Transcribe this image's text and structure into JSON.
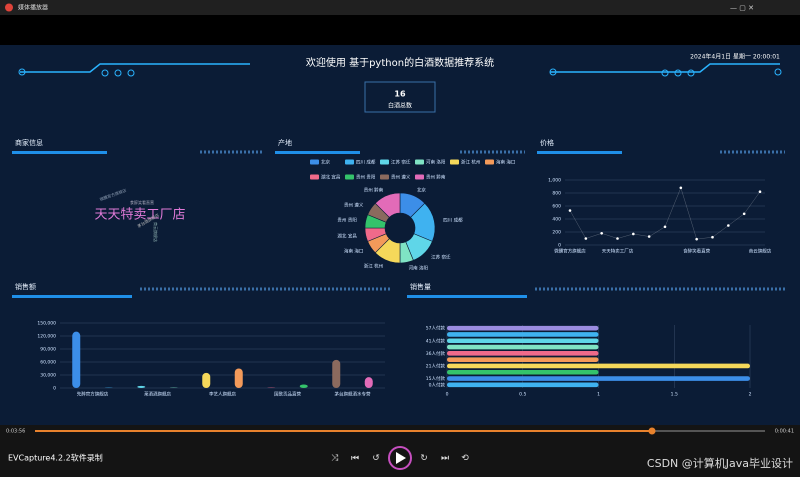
{
  "window": {
    "title": "媒体播放器"
  },
  "dashboard": {
    "title": "欢迎使用 基于python的白酒数据推荐系统",
    "datetime": "2024年4月1日 星期一 20:00:01",
    "total": "16",
    "total_label": "白酒总数",
    "panels": [
      "商家信息",
      "产地",
      "价格",
      "销售额",
      "销售量"
    ],
    "wordcloud": [
      {
        "text": "天天特卖工厂店"
      },
      {
        "text": "微醺官方旗舰店"
      },
      {
        "text": "食醉笑看直营"
      },
      {
        "text": "商云旗舰店"
      },
      {
        "text": "茅台酒旗舰店"
      }
    ]
  },
  "chart_data": [
    {
      "type": "pie",
      "categories": [
        "北京",
        "四川 成都",
        "江苏 宿迁",
        "河南 洛阳",
        "浙江 杭州",
        "海南 海口",
        "湖北 宜昌",
        "贵州 贵阳",
        "贵州 遵义",
        "贵州 黔南"
      ],
      "values": [
        2,
        3,
        2,
        1,
        2,
        1,
        1,
        1,
        1,
        2
      ],
      "colors": [
        "#3c8ee8",
        "#3fb2f0",
        "#5fd6e8",
        "#7fe3c4",
        "#f5d85a",
        "#f39a5a",
        "#f06a8a",
        "#34c36b",
        "#8b6a5e",
        "#e26bb8"
      ]
    },
    {
      "type": "line",
      "categories": [
        "微醺官方旗舰店",
        null,
        null,
        "天天特卖工厂店",
        null,
        null,
        null,
        null,
        "食醉笑看直营",
        null,
        null,
        null,
        "商云旗舰店"
      ],
      "values": [
        530,
        100,
        180,
        100,
        170,
        130,
        280,
        880,
        90,
        120,
        300,
        480,
        820
      ],
      "color": "#ffffff",
      "ylim": [
        0,
        1000
      ],
      "yticks": [
        0,
        200,
        400,
        600,
        800,
        {
          "value": 1000,
          "label": "1,000"
        }
      ],
      "grid": true
    },
    {
      "type": "bar",
      "categories": [
        "先醉官方旗舰店",
        null,
        "莱酒酒旗舰店",
        null,
        "李艺人旗舰店",
        null,
        "国歌贡品直营",
        null,
        "茅台旗舰酒水专营",
        null
      ],
      "values": [
        130000,
        1000,
        5000,
        1000,
        35000,
        45000,
        1000,
        8000,
        65000,
        25000
      ],
      "colors": [
        "#3c8ee8",
        "#3fb2f0",
        "#5fd6e8",
        "#7fe3c4",
        "#f5d85a",
        "#f39a5a",
        "#f06a8a",
        "#34c36b",
        "#8b6a5e",
        "#e26bb8"
      ],
      "ylim": [
        0,
        150000
      ],
      "yticks": [
        0,
        {
          "value": 30000,
          "label": "30,000"
        },
        {
          "value": 60000,
          "label": "60,000"
        },
        {
          "value": 90000,
          "label": "90,000"
        },
        {
          "value": 120000,
          "label": "120,000"
        },
        {
          "value": 150000,
          "label": "150,000"
        }
      ],
      "grid": true
    },
    {
      "type": "barh",
      "categories": [
        "57人付款",
        null,
        "41人付款",
        null,
        "36人付款",
        null,
        "21人付款",
        null,
        "15人付款",
        "0人付款"
      ],
      "values": [
        1,
        1,
        1,
        1,
        1,
        1,
        2,
        1,
        2,
        1
      ],
      "colors": [
        "#9b8ce0",
        "#3fb2f0",
        "#5fd6e8",
        "#7fe3c4",
        "#f06a8a",
        "#f39a5a",
        "#f5d85a",
        "#34c36b",
        "#3c8ee8",
        "#3fb2f0"
      ],
      "xlim": [
        0,
        2
      ],
      "xticks": [
        0,
        0.5,
        1,
        1.5,
        2
      ],
      "grid": true
    }
  ],
  "player": {
    "current": "0:03:56",
    "duration": "0:00:41",
    "recorder": "EVCapture4.2.2软件录制",
    "watermark": "CSDN @计算机Java毕业设计"
  }
}
